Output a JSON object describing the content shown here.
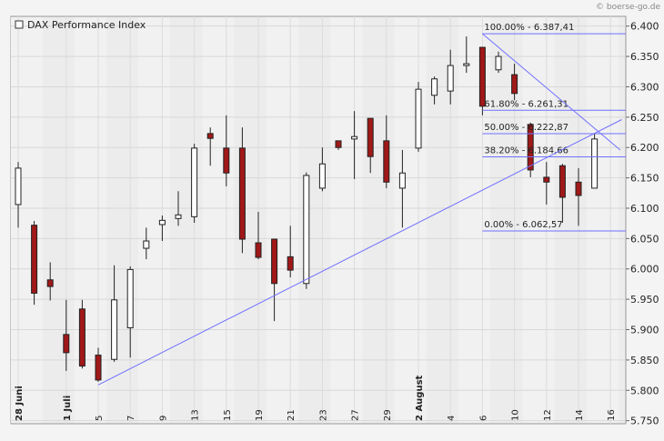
{
  "chart_data": {
    "type": "candlestick",
    "title": "DAX Performance Index",
    "source": "© boerse-go.de",
    "categories": [
      "28 Juni",
      null,
      null,
      "1 Juli",
      null,
      "5",
      null,
      "7",
      null,
      "9",
      null,
      "13",
      null,
      "15",
      null,
      "19",
      null,
      "21",
      null,
      "23",
      null,
      "27",
      null,
      "29",
      null,
      "2 August",
      null,
      "4",
      null,
      "6",
      null,
      "10",
      null,
      "12",
      null,
      "14",
      null,
      "16"
    ],
    "open": [
      6106,
      6072,
      5982,
      5892,
      5934,
      5858,
      5851,
      5903,
      6034,
      6073,
      6083,
      6086,
      6223,
      6199,
      6199,
      6043,
      6049,
      6020,
      5976,
      6133,
      6211,
      6214,
      6248,
      6211,
      6133,
      6199,
      6286,
      6293,
      6335,
      6365,
      6328,
      6320,
      6238,
      6151,
      6170,
      6143,
      6133,
      null
    ],
    "high": [
      6176,
      6079,
      6011,
      5949,
      5949,
      5870,
      6006,
      6004,
      6068,
      6088,
      6128,
      6206,
      6233,
      6253,
      6233,
      6094,
      6050,
      6071,
      6159,
      6200,
      6211,
      6260,
      6248,
      6253,
      6196,
      6308,
      6317,
      6361,
      6383,
      6365,
      6358,
      6338,
      6241,
      6176,
      6173,
      6166,
      6223,
      null
    ],
    "low": [
      6068,
      5941,
      5948,
      5832,
      5836,
      5814,
      5847,
      5854,
      6016,
      6046,
      6071,
      6076,
      6170,
      6136,
      6026,
      6016,
      5914,
      5986,
      5967,
      6128,
      6196,
      6148,
      6158,
      6133,
      6068,
      6193,
      6271,
      6271,
      6323,
      6253,
      6323,
      6278,
      6151,
      6106,
      6076,
      6071,
      6133,
      null
    ],
    "close": [
      6166,
      5960,
      5971,
      5862,
      5840,
      5817,
      5949,
      5999,
      6046,
      6080,
      6089,
      6199,
      6215,
      6158,
      6049,
      6019,
      5976,
      5998,
      6154,
      6173,
      6200,
      6218,
      6185,
      6143,
      6158,
      6296,
      6313,
      6335,
      6338,
      6268,
      6350,
      6289,
      6163,
      6143,
      6118,
      6121,
      6214,
      null
    ],
    "up_color": "#ffffff",
    "down_color": "#a01818",
    "ylim": [
      5745,
      6416
    ],
    "yticks": [
      {
        "value": 5750,
        "label": "5.750"
      },
      {
        "value": 5800,
        "label": "5.800"
      },
      {
        "value": 5850,
        "label": "5.850"
      },
      {
        "value": 5900,
        "label": "5.900"
      },
      {
        "value": 5950,
        "label": "5.950"
      },
      {
        "value": 6000,
        "label": "6.000"
      },
      {
        "value": 6050,
        "label": "6.050"
      },
      {
        "value": 6100,
        "label": "6.100"
      },
      {
        "value": 6150,
        "label": "6.150"
      },
      {
        "value": 6200,
        "label": "6.200"
      },
      {
        "value": 6250,
        "label": "6.250"
      },
      {
        "value": 6300,
        "label": "6.300"
      },
      {
        "value": 6350,
        "label": "6.350"
      },
      {
        "value": 6400,
        "label": "6.400"
      }
    ],
    "grid": true,
    "trendlines": [
      {
        "color": "#7070ff",
        "x": [
          5,
          37.7
        ],
        "values": [
          5809,
          6246
        ]
      },
      {
        "color": "#7070ff",
        "x": [
          29,
          37.6
        ],
        "values": [
          6387.41,
          6196
        ]
      }
    ],
    "fibonacci": {
      "color": "#7070ff",
      "start": 29,
      "levels": [
        {
          "value": 6387.41,
          "label": "100.00% - 6.387,41"
        },
        {
          "value": 6261.31,
          "label": "61.80% - 6.261,31"
        },
        {
          "value": 6222.87,
          "label": "50.00% - 6.222,87"
        },
        {
          "value": 6184.66,
          "label": "38.20% - 6.184,66"
        },
        {
          "value": 6062.57,
          "label": "0.00% - 6.062,57"
        }
      ]
    }
  }
}
